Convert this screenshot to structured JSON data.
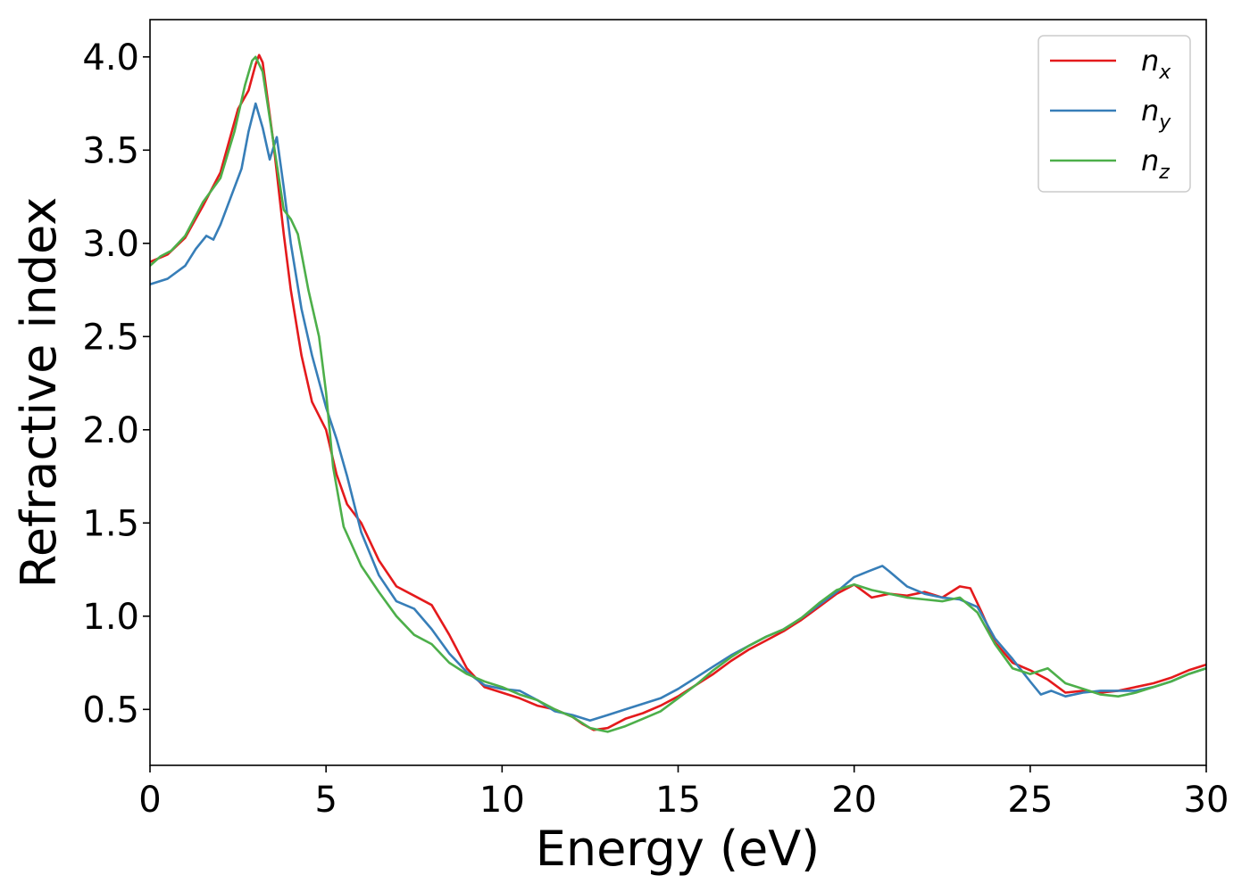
{
  "chart_data": {
    "type": "line",
    "title": "",
    "xlabel": "Energy (eV)",
    "ylabel": "Refractive index",
    "xlim": [
      0,
      30
    ],
    "ylim": [
      0.2,
      4.2
    ],
    "xticks": [
      0,
      5,
      10,
      15,
      20,
      25,
      30
    ],
    "xtick_labels": [
      "0",
      "5",
      "10",
      "15",
      "20",
      "25",
      "30"
    ],
    "yticks": [
      0.5,
      1.0,
      1.5,
      2.0,
      2.5,
      3.0,
      3.5,
      4.0
    ],
    "ytick_labels": [
      "0.5",
      "1.0",
      "1.5",
      "2.0",
      "2.5",
      "3.0",
      "3.5",
      "4.0"
    ],
    "grid": false,
    "legend_position": "top-right",
    "series": [
      {
        "name": "n",
        "subscript": "x",
        "color": "#e41a1c",
        "x": [
          0,
          0.5,
          1.0,
          1.5,
          2.0,
          2.5,
          2.8,
          3.0,
          3.1,
          3.2,
          3.5,
          3.8,
          4.0,
          4.3,
          4.6,
          5.0,
          5.3,
          5.6,
          6.0,
          6.5,
          7.0,
          7.5,
          8.0,
          8.5,
          9.0,
          9.5,
          10.0,
          10.5,
          11.0,
          11.5,
          12.0,
          12.3,
          12.6,
          13.0,
          13.5,
          14.0,
          14.5,
          15.0,
          15.5,
          16.0,
          16.5,
          17.0,
          17.5,
          18.0,
          18.5,
          19.0,
          19.5,
          20.0,
          20.5,
          21.0,
          21.5,
          22.0,
          22.5,
          23.0,
          23.3,
          23.6,
          24.0,
          24.5,
          25.0,
          25.5,
          26.0,
          26.5,
          27.0,
          27.5,
          28.0,
          28.5,
          29.0,
          29.5,
          30.0
        ],
        "values": [
          2.9,
          2.94,
          3.03,
          3.2,
          3.38,
          3.72,
          3.82,
          3.96,
          4.01,
          3.97,
          3.55,
          3.05,
          2.75,
          2.4,
          2.15,
          2.0,
          1.76,
          1.6,
          1.5,
          1.3,
          1.16,
          1.11,
          1.06,
          0.9,
          0.72,
          0.62,
          0.59,
          0.56,
          0.52,
          0.5,
          0.46,
          0.42,
          0.39,
          0.4,
          0.45,
          0.48,
          0.52,
          0.57,
          0.63,
          0.69,
          0.76,
          0.82,
          0.87,
          0.92,
          0.98,
          1.05,
          1.12,
          1.17,
          1.1,
          1.12,
          1.11,
          1.13,
          1.1,
          1.16,
          1.15,
          1.03,
          0.86,
          0.75,
          0.71,
          0.66,
          0.59,
          0.6,
          0.59,
          0.6,
          0.62,
          0.64,
          0.67,
          0.71,
          0.74
        ]
      },
      {
        "name": "n",
        "subscript": "y",
        "color": "#377eb8",
        "x": [
          0,
          0.5,
          1.0,
          1.3,
          1.6,
          1.8,
          2.0,
          2.3,
          2.6,
          2.8,
          3.0,
          3.2,
          3.4,
          3.6,
          3.8,
          4.0,
          4.3,
          4.6,
          5.0,
          5.3,
          5.6,
          6.0,
          6.5,
          7.0,
          7.5,
          8.0,
          8.5,
          9.0,
          9.5,
          10.0,
          10.5,
          11.0,
          11.5,
          12.0,
          12.5,
          13.0,
          13.5,
          14.0,
          14.5,
          15.0,
          15.5,
          16.0,
          16.5,
          17.0,
          17.5,
          18.0,
          18.5,
          19.0,
          19.5,
          20.0,
          20.4,
          20.8,
          21.0,
          21.5,
          22.0,
          22.5,
          23.0,
          23.5,
          24.0,
          24.5,
          25.0,
          25.3,
          25.6,
          26.0,
          26.5,
          27.0,
          27.5,
          28.0,
          28.5,
          29.0,
          29.5,
          30.0
        ],
        "values": [
          2.78,
          2.81,
          2.88,
          2.97,
          3.04,
          3.02,
          3.1,
          3.25,
          3.4,
          3.6,
          3.75,
          3.62,
          3.45,
          3.57,
          3.3,
          3.0,
          2.65,
          2.4,
          2.12,
          1.95,
          1.75,
          1.45,
          1.22,
          1.08,
          1.04,
          0.93,
          0.8,
          0.7,
          0.63,
          0.61,
          0.6,
          0.55,
          0.49,
          0.47,
          0.44,
          0.47,
          0.5,
          0.53,
          0.56,
          0.61,
          0.67,
          0.73,
          0.79,
          0.84,
          0.89,
          0.93,
          0.99,
          1.06,
          1.13,
          1.21,
          1.24,
          1.27,
          1.24,
          1.16,
          1.12,
          1.1,
          1.09,
          1.05,
          0.88,
          0.77,
          0.65,
          0.58,
          0.6,
          0.57,
          0.59,
          0.6,
          0.6,
          0.6,
          0.62,
          0.65,
          0.69,
          0.72
        ]
      },
      {
        "name": "n",
        "subscript": "z",
        "color": "#4daf4a",
        "x": [
          0,
          0.3,
          0.6,
          1.0,
          1.5,
          2.0,
          2.4,
          2.7,
          2.9,
          3.0,
          3.2,
          3.5,
          3.8,
          4.0,
          4.2,
          4.5,
          4.8,
          5.0,
          5.2,
          5.5,
          6.0,
          6.5,
          7.0,
          7.5,
          8.0,
          8.5,
          9.0,
          9.5,
          10.0,
          10.5,
          11.0,
          11.5,
          12.0,
          12.5,
          13.0,
          13.5,
          14.0,
          14.5,
          15.0,
          15.5,
          16.0,
          16.5,
          17.0,
          17.5,
          18.0,
          18.5,
          19.0,
          19.5,
          20.0,
          20.5,
          21.0,
          21.5,
          22.0,
          22.5,
          23.0,
          23.5,
          24.0,
          24.5,
          25.0,
          25.5,
          26.0,
          26.5,
          27.0,
          27.5,
          28.0,
          28.5,
          29.0,
          29.5,
          30.0
        ],
        "values": [
          2.88,
          2.93,
          2.96,
          3.04,
          3.22,
          3.35,
          3.6,
          3.85,
          3.98,
          4.0,
          3.92,
          3.55,
          3.18,
          3.13,
          3.05,
          2.75,
          2.5,
          2.2,
          1.8,
          1.48,
          1.27,
          1.13,
          1.0,
          0.9,
          0.85,
          0.75,
          0.69,
          0.65,
          0.62,
          0.58,
          0.55,
          0.5,
          0.46,
          0.4,
          0.38,
          0.41,
          0.45,
          0.49,
          0.56,
          0.63,
          0.71,
          0.78,
          0.84,
          0.89,
          0.93,
          0.99,
          1.07,
          1.14,
          1.17,
          1.14,
          1.12,
          1.1,
          1.09,
          1.08,
          1.1,
          1.02,
          0.85,
          0.72,
          0.69,
          0.72,
          0.64,
          0.61,
          0.58,
          0.57,
          0.59,
          0.62,
          0.65,
          0.69,
          0.72
        ]
      }
    ]
  }
}
